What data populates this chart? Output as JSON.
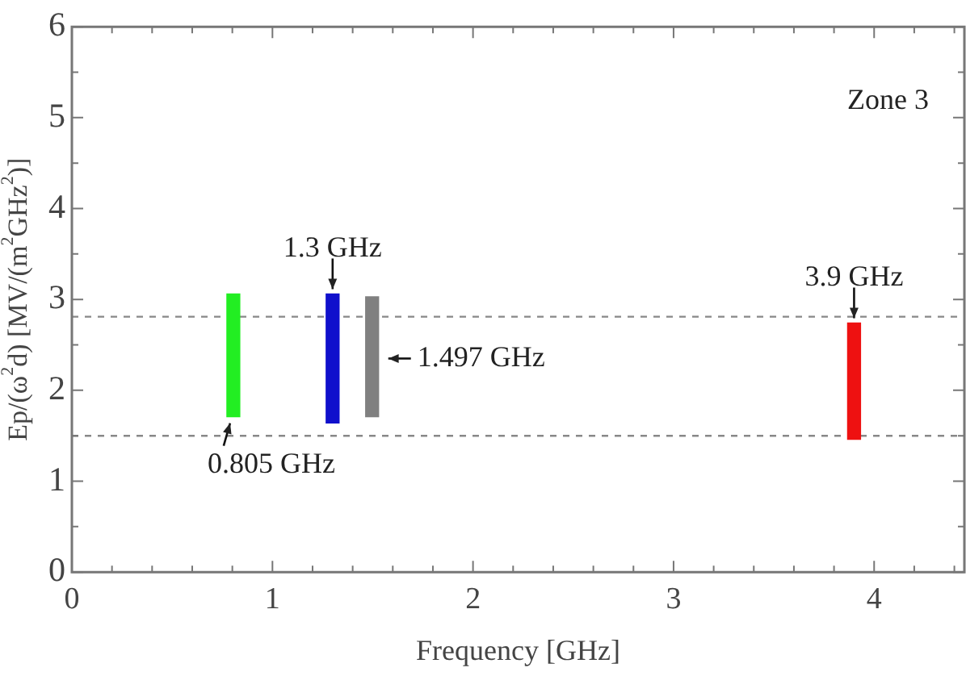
{
  "chart_data": {
    "type": "bar",
    "xlabel": "Frequency [GHz]",
    "ylabel": "Ep/(ω$^{2}$d) [MV/(m$^{2}$GHz$^{2}$)]",
    "x": [
      0.805,
      1.3,
      1.497,
      3.9
    ],
    "base": [
      1.71,
      1.64,
      1.71,
      1.46
    ],
    "values": [
      1.35,
      1.42,
      1.32,
      1.28
    ],
    "colors": [
      "#22ee22",
      "#1010cc",
      "#808080",
      "#ee1111"
    ],
    "xlim": [
      0,
      4.45
    ],
    "xticks": [
      0,
      {
        "value": 0.2,
        "label": null
      },
      {
        "value": 0.4,
        "label": null
      },
      {
        "value": 0.6,
        "label": null
      },
      {
        "value": 0.8,
        "label": null
      },
      1,
      {
        "value": 1.2,
        "label": null
      },
      {
        "value": 1.4,
        "label": null
      },
      {
        "value": 1.6,
        "label": null
      },
      {
        "value": 1.8,
        "label": null
      },
      2,
      {
        "value": 2.2,
        "label": null
      },
      {
        "value": 2.4,
        "label": null
      },
      {
        "value": 2.6,
        "label": null
      },
      {
        "value": 2.8,
        "label": null
      },
      3,
      {
        "value": 3.2,
        "label": null
      },
      {
        "value": 3.4,
        "label": null
      },
      {
        "value": 3.6,
        "label": null
      },
      {
        "value": 3.8,
        "label": null
      },
      4,
      {
        "value": 4.2,
        "label": null
      },
      {
        "value": 4.4,
        "label": null
      }
    ],
    "ylim": [
      0,
      6
    ],
    "yticks": [
      0,
      {
        "value": 0.5,
        "label": null
      },
      1,
      {
        "value": 1.5,
        "label": null
      },
      2,
      {
        "value": 2.5,
        "label": null
      },
      3,
      {
        "value": 3.5,
        "label": null
      },
      4,
      {
        "value": 4.5,
        "label": null
      },
      5,
      {
        "value": 5.5,
        "label": null
      },
      6
    ],
    "ref_lines": [
      {
        "axis": "y",
        "value": 2.81,
        "color": "#888888",
        "line_style": "dashed"
      },
      {
        "axis": "y",
        "value": 1.5,
        "color": "#888888",
        "line_style": "dashed"
      }
    ],
    "annotations": [
      "Zone 3",
      {
        "text": "1.3 GHz",
        "x": 1.3,
        "y": 3.06
      },
      {
        "text": "1.497 GHz",
        "x": 1.497,
        "y": 2.35
      },
      {
        "text": "0.805 GHz",
        "x": 0.805,
        "y": 1.71
      },
      {
        "text": "3.9 GHz",
        "x": 3.9,
        "y": 2.74
      }
    ],
    "grid": false,
    "legend": false
  }
}
